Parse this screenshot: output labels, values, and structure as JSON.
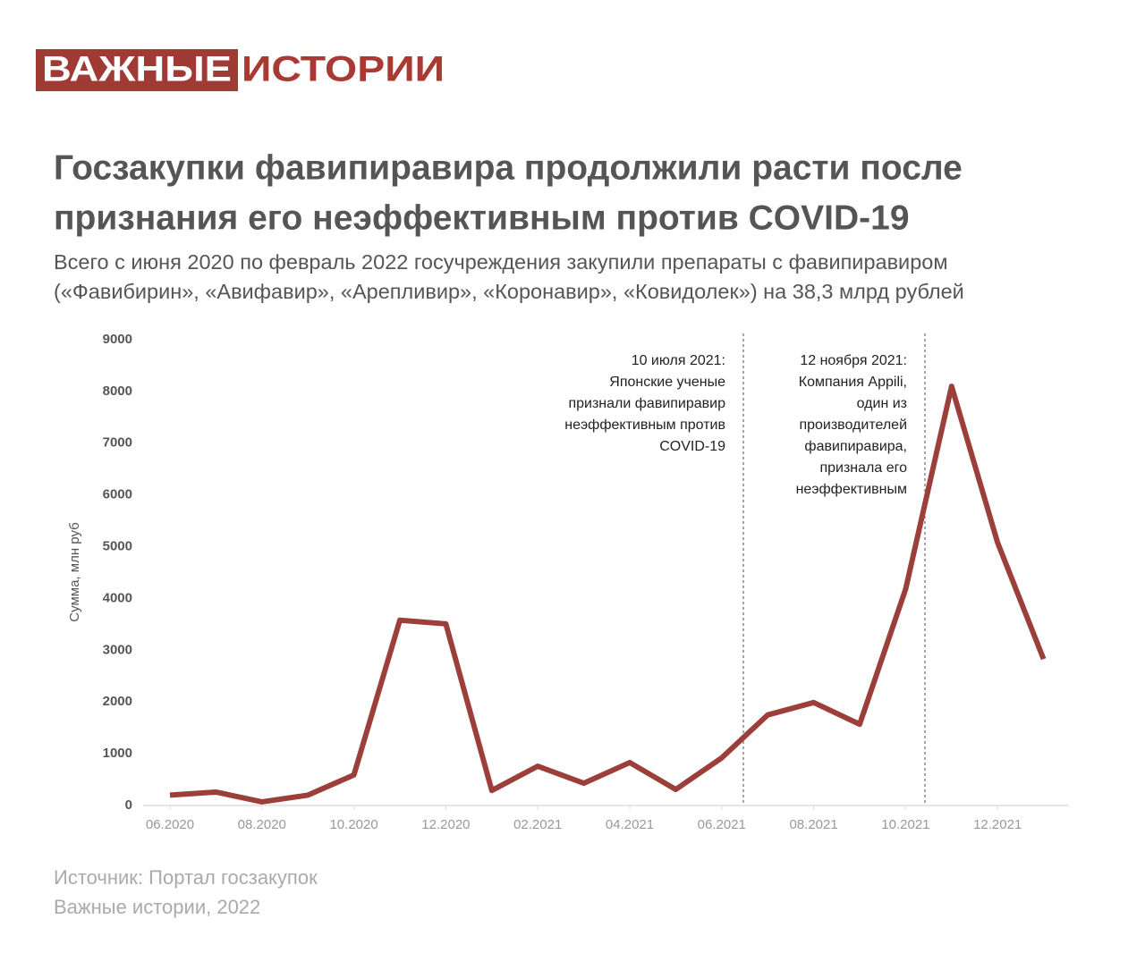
{
  "brand": {
    "part1": "ВАЖНЫЕ",
    "part2": "ИСТОРИИ"
  },
  "chart_data": {
    "type": "line",
    "title": [
      "Госзакупки фавипиравира продолжили расти после",
      "признания его неэффективным против COVID-19"
    ],
    "subtitle": [
      "Всего с июня 2020 по февраль 2022 госучреждения закупили препараты с фавипиравиром",
      "(«Фавибирин», «Авифавир», «Арепливир», «Коронавир», «Ковидолек») на 38,3 млрд рублей"
    ],
    "y_label": "Сумма, млн руб",
    "categories": [
      "06.2020",
      null,
      "08.2020",
      null,
      "10.2020",
      null,
      "12.2020",
      null,
      "02.2021",
      null,
      "04.2021",
      null,
      "06.2021",
      null,
      "08.2021",
      null,
      "10.2021",
      null,
      "12.2021",
      null
    ],
    "series": [
      {
        "name": "Сумма",
        "color": "#9c3f3a",
        "values": [
          200,
          260,
          70,
          200,
          590,
          3580,
          3510,
          290,
          760,
          430,
          830,
          310,
          920,
          1750,
          1990,
          1570,
          4180,
          8100,
          5080,
          2830
        ]
      }
    ],
    "ylim": [
      0,
      9000
    ],
    "yticks": [
      0,
      1000,
      2000,
      3000,
      4000,
      5000,
      6000,
      7000,
      8000,
      9000
    ],
    "grid": false,
    "annotations": [
      {
        "lines": [
          "10 июля 2021:",
          "Японские ученые",
          "признали фавипиравир",
          "неэффективным против",
          "COVID-19"
        ]
      },
      {
        "lines": [
          "12 ноября 2021:",
          "Компания Appili,",
          "один из",
          "производителей",
          "фавипиравира,",
          "признала его",
          "неэффективным"
        ]
      }
    ],
    "source": [
      "Источник: Портал госзакупок",
      "Важные истории, 2022"
    ]
  }
}
